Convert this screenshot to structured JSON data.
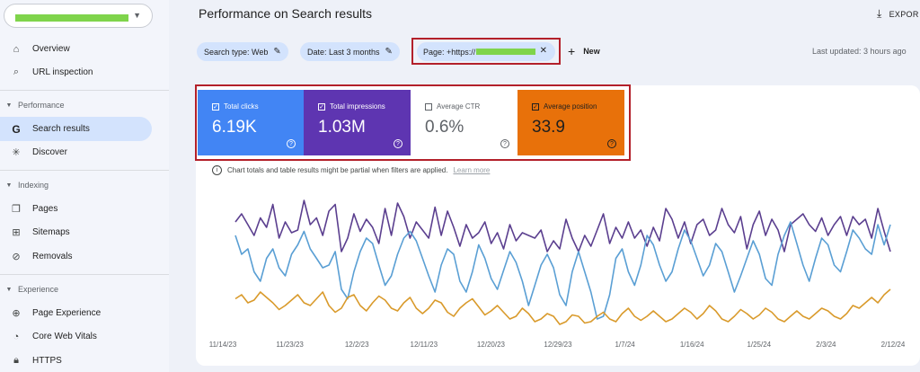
{
  "sidebar": {
    "nav": [
      {
        "label": "Overview",
        "icon": "home-icon"
      },
      {
        "label": "URL inspection",
        "icon": "search-icon"
      }
    ],
    "sections": [
      {
        "title": "Performance",
        "items": [
          {
            "label": "Search results",
            "icon": "google-g-icon",
            "active": true
          },
          {
            "label": "Discover",
            "icon": "asterisk-icon"
          }
        ]
      },
      {
        "title": "Indexing",
        "items": [
          {
            "label": "Pages",
            "icon": "pages-icon"
          },
          {
            "label": "Sitemaps",
            "icon": "sitemap-icon"
          },
          {
            "label": "Removals",
            "icon": "removals-icon"
          }
        ]
      },
      {
        "title": "Experience",
        "items": [
          {
            "label": "Page Experience",
            "icon": "plus-circle-icon"
          },
          {
            "label": "Core Web Vitals",
            "icon": "gauge-icon"
          },
          {
            "label": "HTTPS",
            "icon": "lock-icon"
          }
        ]
      }
    ]
  },
  "header": {
    "title": "Performance on Search results",
    "export_label": "EXPOR"
  },
  "filters": {
    "search_type": "Search type: Web",
    "date": "Date: Last 3 months",
    "page_prefix": "Page: +https://",
    "new_label": "New",
    "last_updated": "Last updated: 3 hours ago"
  },
  "metrics": {
    "clicks": {
      "label": "Total clicks",
      "value": "6.19K",
      "checked": true
    },
    "impressions": {
      "label": "Total impressions",
      "value": "1.03M",
      "checked": true
    },
    "ctr": {
      "label": "Average CTR",
      "value": "0.6%",
      "checked": false
    },
    "position": {
      "label": "Average position",
      "value": "33.9",
      "checked": true
    }
  },
  "notice": {
    "text": "Chart totals and table results might be partial when filters are applied.",
    "link": "Learn more"
  },
  "colors": {
    "clicks": "#4285f4",
    "impressions": "#5e35b1",
    "position": "#e8710a",
    "line_clicks": "#5a9fd4",
    "line_impressions": "#5b3f8f",
    "line_position": "#d99a2b"
  },
  "chart_data": {
    "type": "line",
    "x_ticks": [
      "11/14/23",
      "11/23/23",
      "12/2/23",
      "12/11/23",
      "12/20/23",
      "12/29/23",
      "1/7/24",
      "1/16/24",
      "1/25/24",
      "2/3/24",
      "2/12/24"
    ],
    "series": [
      {
        "name": "Total impressions",
        "values": [
          0.82,
          0.88,
          0.8,
          0.72,
          0.85,
          0.78,
          0.95,
          0.7,
          0.82,
          0.74,
          0.76,
          0.98,
          0.8,
          0.85,
          0.72,
          0.9,
          0.95,
          0.6,
          0.7,
          0.88,
          0.75,
          0.84,
          0.78,
          0.66,
          0.92,
          0.72,
          0.96,
          0.86,
          0.7,
          0.82,
          0.76,
          0.7,
          0.93,
          0.72,
          0.9,
          0.78,
          0.64,
          0.8,
          0.7,
          0.74,
          0.82,
          0.66,
          0.74,
          0.62,
          0.8,
          0.68,
          0.74,
          0.72,
          0.7,
          0.76,
          0.6,
          0.68,
          0.62,
          0.84,
          0.7,
          0.6,
          0.72,
          0.64,
          0.76,
          0.88,
          0.66,
          0.78,
          0.7,
          0.82,
          0.7,
          0.76,
          0.64,
          0.78,
          0.68,
          0.92,
          0.84,
          0.7,
          0.82,
          0.66,
          0.8,
          0.84,
          0.72,
          0.76,
          0.92,
          0.8,
          0.74,
          0.86,
          0.62,
          0.8,
          0.9,
          0.72,
          0.84,
          0.76,
          0.6,
          0.8,
          0.84,
          0.88,
          0.8,
          0.75,
          0.85,
          0.72,
          0.8,
          0.86,
          0.72,
          0.86,
          0.8,
          0.84,
          0.7,
          0.92,
          0.75,
          0.6
        ]
      },
      {
        "name": "Total clicks",
        "values": [
          0.72,
          0.58,
          0.62,
          0.45,
          0.38,
          0.55,
          0.62,
          0.48,
          0.42,
          0.58,
          0.65,
          0.75,
          0.62,
          0.55,
          0.48,
          0.5,
          0.6,
          0.32,
          0.25,
          0.45,
          0.6,
          0.7,
          0.66,
          0.5,
          0.35,
          0.42,
          0.58,
          0.7,
          0.75,
          0.68,
          0.55,
          0.42,
          0.3,
          0.5,
          0.62,
          0.58,
          0.38,
          0.3,
          0.45,
          0.65,
          0.55,
          0.4,
          0.32,
          0.46,
          0.6,
          0.52,
          0.38,
          0.2,
          0.35,
          0.5,
          0.58,
          0.48,
          0.28,
          0.2,
          0.45,
          0.6,
          0.45,
          0.3,
          0.1,
          0.12,
          0.28,
          0.55,
          0.62,
          0.45,
          0.35,
          0.5,
          0.72,
          0.65,
          0.5,
          0.38,
          0.45,
          0.62,
          0.76,
          0.68,
          0.55,
          0.42,
          0.5,
          0.66,
          0.6,
          0.45,
          0.3,
          0.42,
          0.55,
          0.68,
          0.58,
          0.4,
          0.35,
          0.58,
          0.72,
          0.82,
          0.66,
          0.5,
          0.38,
          0.55,
          0.7,
          0.65,
          0.5,
          0.45,
          0.6,
          0.76,
          0.7,
          0.62,
          0.58,
          0.8,
          0.65,
          0.8
        ]
      },
      {
        "name": "Average position",
        "values": [
          0.25,
          0.28,
          0.22,
          0.24,
          0.3,
          0.26,
          0.22,
          0.17,
          0.2,
          0.24,
          0.28,
          0.22,
          0.2,
          0.25,
          0.3,
          0.2,
          0.15,
          0.18,
          0.26,
          0.28,
          0.2,
          0.16,
          0.22,
          0.27,
          0.24,
          0.18,
          0.16,
          0.22,
          0.26,
          0.18,
          0.14,
          0.18,
          0.24,
          0.22,
          0.15,
          0.12,
          0.18,
          0.22,
          0.25,
          0.19,
          0.13,
          0.16,
          0.2,
          0.15,
          0.1,
          0.12,
          0.18,
          0.14,
          0.08,
          0.1,
          0.14,
          0.12,
          0.06,
          0.08,
          0.13,
          0.12,
          0.07,
          0.08,
          0.12,
          0.15,
          0.1,
          0.08,
          0.14,
          0.18,
          0.12,
          0.09,
          0.12,
          0.16,
          0.12,
          0.08,
          0.1,
          0.14,
          0.18,
          0.15,
          0.1,
          0.14,
          0.2,
          0.16,
          0.1,
          0.08,
          0.12,
          0.17,
          0.14,
          0.1,
          0.13,
          0.18,
          0.15,
          0.1,
          0.08,
          0.12,
          0.16,
          0.12,
          0.1,
          0.14,
          0.18,
          0.16,
          0.12,
          0.1,
          0.14,
          0.2,
          0.18,
          0.22,
          0.26,
          0.22,
          0.28,
          0.32
        ]
      }
    ],
    "ylim": [
      0,
      1
    ],
    "grid": false,
    "legend": "none"
  }
}
